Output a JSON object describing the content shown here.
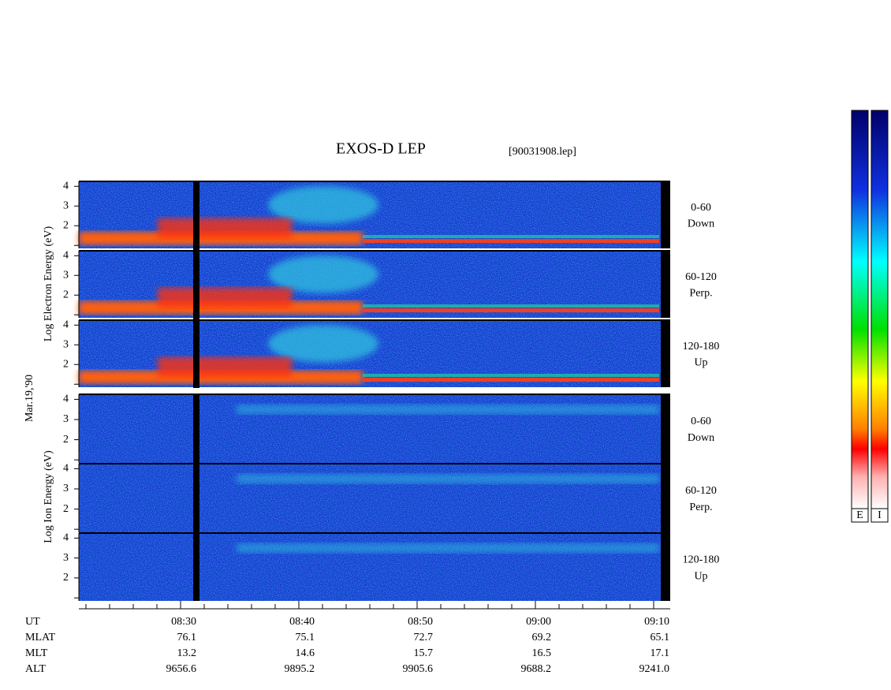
{
  "title": "EXOS-D LEP",
  "file": "[90031908.lep]",
  "electron_label": "Log  Electron  Energy (eV)",
  "ion_label": "Log  Ion  Energy (eV)",
  "date": "Mar.19,'90",
  "energy_ticks": [
    4,
    3,
    2
  ],
  "electron_panels": [
    {
      "angle": "0-60",
      "direction": "Down"
    },
    {
      "angle": "60-120",
      "direction": "Perp."
    },
    {
      "angle": "120-180",
      "direction": "Up"
    }
  ],
  "ion_panels": [
    {
      "angle": "0-60",
      "direction": "Down"
    },
    {
      "angle": "60-120",
      "direction": "Perp."
    },
    {
      "angle": "120-180",
      "direction": "Up"
    }
  ],
  "row_labels": [
    "UT",
    "MLAT",
    "MLT",
    "ALT"
  ],
  "rows": [
    [
      "08:30",
      "08:40",
      "08:50",
      "09:00",
      "09:10"
    ],
    [
      "76.1",
      "75.1",
      "72.7",
      "69.2",
      "65.1"
    ],
    [
      "13.2",
      "14.6",
      "15.7",
      "16.5",
      "17.1"
    ],
    [
      "9656.6",
      "9895.2",
      "9905.6",
      "9688.2",
      "9241.0"
    ]
  ],
  "colorbar_labels": [
    "E",
    "I"
  ]
}
